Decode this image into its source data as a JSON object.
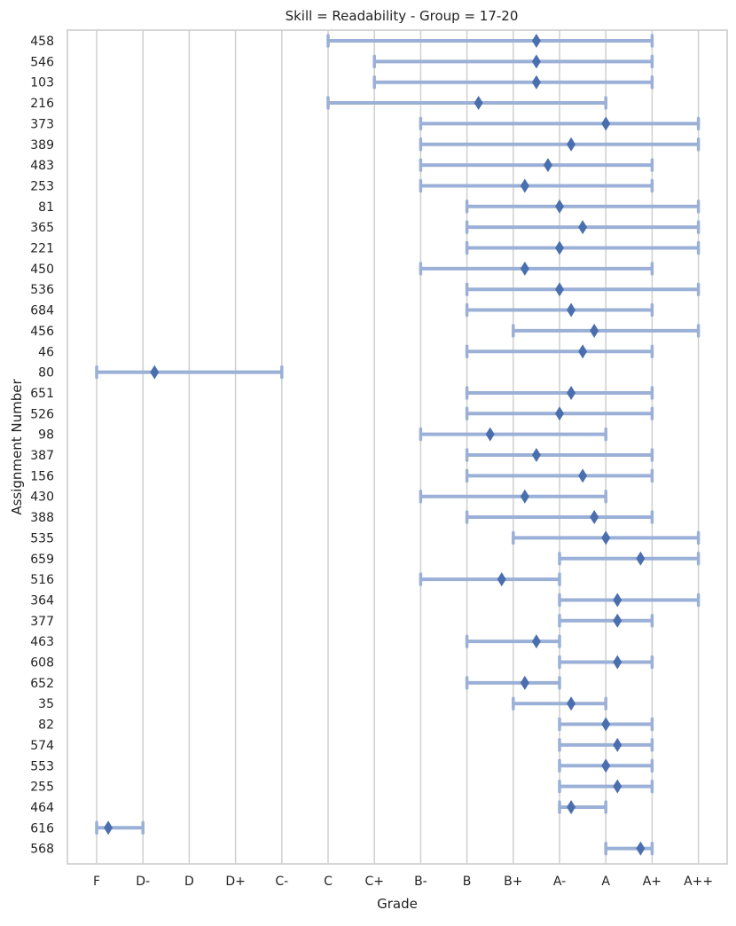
{
  "chart_data": {
    "type": "interval",
    "title": "Skill = Readability - Group = 17-20",
    "xlabel": "Grade",
    "ylabel": "Assignment Number",
    "grid": "vertical",
    "grade_scale": [
      "F",
      "D-",
      "D",
      "D+",
      "C-",
      "C",
      "C+",
      "B-",
      "B",
      "B+",
      "A-",
      "A",
      "A+",
      "A++"
    ],
    "colors": {
      "interval": "#9bb0d6",
      "marker": "#4a6faf",
      "grid": "#cfcfcf",
      "frame": "#c8c8c8"
    },
    "rows": [
      {
        "label": "458",
        "low": 5,
        "mean": 9.5,
        "high": 12
      },
      {
        "label": "546",
        "low": 6,
        "mean": 9.5,
        "high": 12
      },
      {
        "label": "103",
        "low": 6,
        "mean": 9.5,
        "high": 12
      },
      {
        "label": "216",
        "low": 5,
        "mean": 8.25,
        "high": 11
      },
      {
        "label": "373",
        "low": 7,
        "mean": 11,
        "high": 13
      },
      {
        "label": "389",
        "low": 7,
        "mean": 10.25,
        "high": 13
      },
      {
        "label": "483",
        "low": 7,
        "mean": 9.75,
        "high": 12
      },
      {
        "label": "253",
        "low": 7,
        "mean": 9.25,
        "high": 12
      },
      {
        "label": "81",
        "low": 8,
        "mean": 10,
        "high": 13
      },
      {
        "label": "365",
        "low": 8,
        "mean": 10.5,
        "high": 13
      },
      {
        "label": "221",
        "low": 8,
        "mean": 10,
        "high": 13
      },
      {
        "label": "450",
        "low": 7,
        "mean": 9.25,
        "high": 12
      },
      {
        "label": "536",
        "low": 8,
        "mean": 10,
        "high": 13
      },
      {
        "label": "684",
        "low": 8,
        "mean": 10.25,
        "high": 12
      },
      {
        "label": "456",
        "low": 9,
        "mean": 10.75,
        "high": 13
      },
      {
        "label": "46",
        "low": 8,
        "mean": 10.5,
        "high": 12
      },
      {
        "label": "80",
        "low": 0,
        "mean": 1.25,
        "high": 4
      },
      {
        "label": "651",
        "low": 8,
        "mean": 10.25,
        "high": 12
      },
      {
        "label": "526",
        "low": 8,
        "mean": 10,
        "high": 12
      },
      {
        "label": "98",
        "low": 7,
        "mean": 8.5,
        "high": 11
      },
      {
        "label": "387",
        "low": 8,
        "mean": 9.5,
        "high": 12
      },
      {
        "label": "156",
        "low": 8,
        "mean": 10.5,
        "high": 12
      },
      {
        "label": "430",
        "low": 7,
        "mean": 9.25,
        "high": 11
      },
      {
        "label": "388",
        "low": 8,
        "mean": 10.75,
        "high": 12
      },
      {
        "label": "535",
        "low": 9,
        "mean": 11,
        "high": 13
      },
      {
        "label": "659",
        "low": 10,
        "mean": 11.75,
        "high": 13
      },
      {
        "label": "516",
        "low": 7,
        "mean": 8.75,
        "high": 10
      },
      {
        "label": "364",
        "low": 10,
        "mean": 11.25,
        "high": 13
      },
      {
        "label": "377",
        "low": 10,
        "mean": 11.25,
        "high": 12
      },
      {
        "label": "463",
        "low": 8,
        "mean": 9.5,
        "high": 10
      },
      {
        "label": "608",
        "low": 10,
        "mean": 11.25,
        "high": 12
      },
      {
        "label": "652",
        "low": 8,
        "mean": 9.25,
        "high": 10
      },
      {
        "label": "35",
        "low": 9,
        "mean": 10.25,
        "high": 11
      },
      {
        "label": "82",
        "low": 10,
        "mean": 11,
        "high": 12
      },
      {
        "label": "574",
        "low": 10,
        "mean": 11.25,
        "high": 12
      },
      {
        "label": "553",
        "low": 10,
        "mean": 11,
        "high": 12
      },
      {
        "label": "255",
        "low": 10,
        "mean": 11.25,
        "high": 12
      },
      {
        "label": "464",
        "low": 10,
        "mean": 10.25,
        "high": 11
      },
      {
        "label": "616",
        "low": 0,
        "mean": 0.25,
        "high": 1
      },
      {
        "label": "568",
        "low": 11,
        "mean": 11.75,
        "high": 12
      }
    ]
  }
}
